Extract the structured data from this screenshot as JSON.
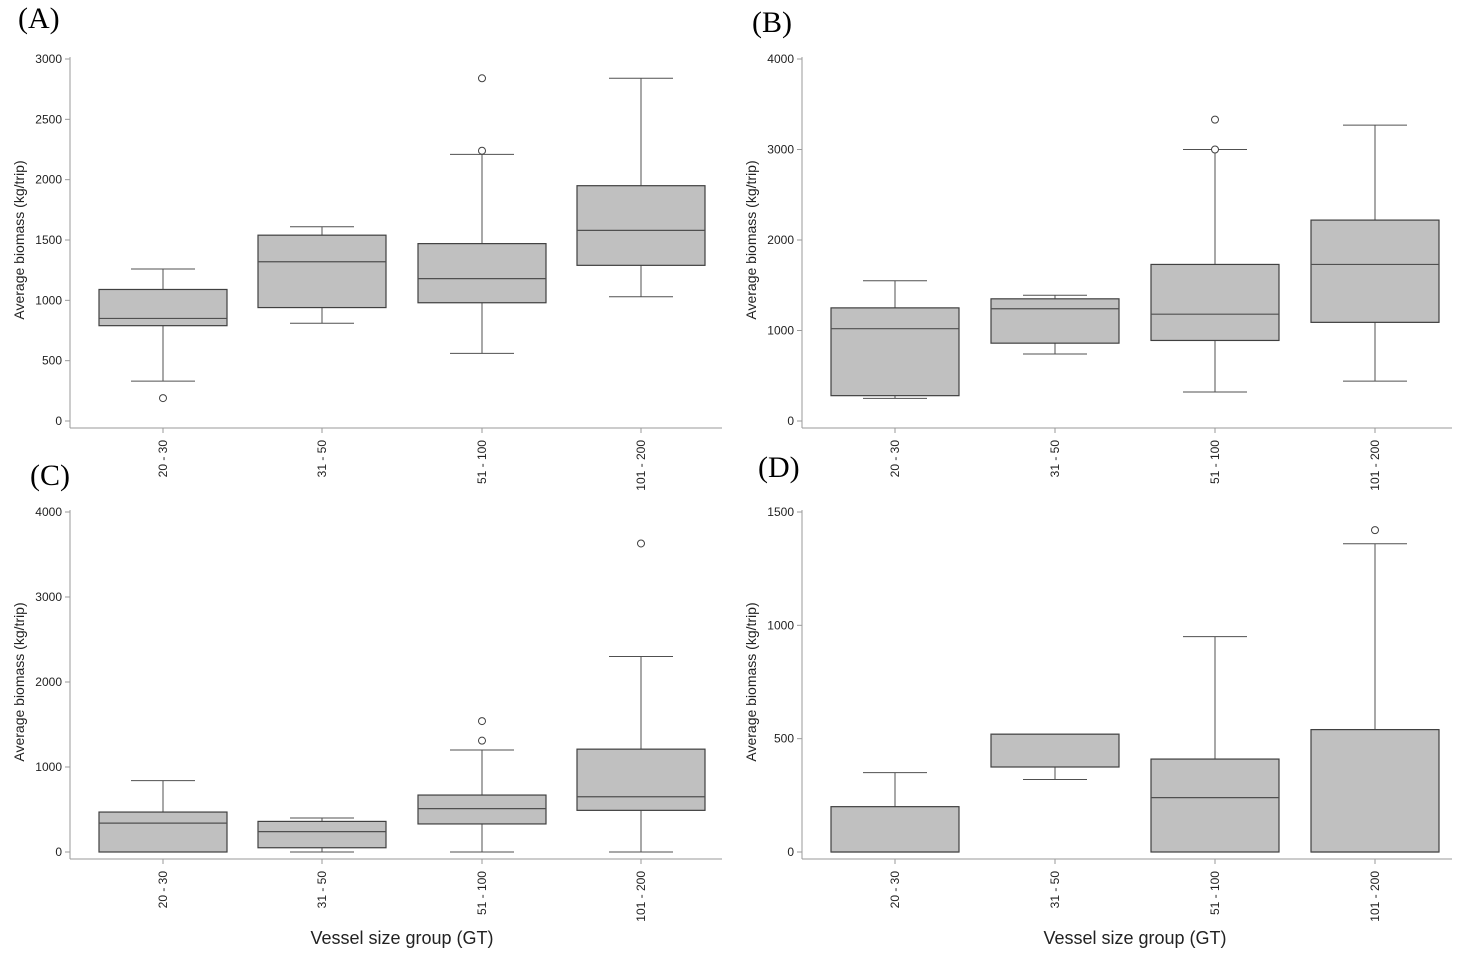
{
  "figure": {
    "x_axis_title": "Vessel size group (GT)"
  },
  "chart_data": [
    {
      "panel": "(A)",
      "type": "box",
      "ylabel": "Average biomass (kg/trip)",
      "xlabel": "",
      "ylim": [
        0,
        3000
      ],
      "yticks": [
        "0",
        "500",
        "1000",
        "1500",
        "2000",
        "2500",
        "3000"
      ],
      "categories": [
        "20 - 30",
        "31 - 50",
        "51 - 100",
        "101 - 200"
      ],
      "boxes": [
        {
          "min": 330,
          "q1": 790,
          "median": 850,
          "q3": 1090,
          "max": 1260,
          "outliers": [
            190
          ]
        },
        {
          "min": 810,
          "q1": 940,
          "median": 1320,
          "q3": 1540,
          "max": 1610,
          "outliers": []
        },
        {
          "min": 560,
          "q1": 980,
          "median": 1180,
          "q3": 1470,
          "max": 2210,
          "outliers": [
            2240,
            2840
          ]
        },
        {
          "min": 1030,
          "q1": 1290,
          "median": 1580,
          "q3": 1950,
          "max": 2840,
          "outliers": []
        }
      ]
    },
    {
      "panel": "(B)",
      "type": "box",
      "ylabel": "Average biomass (kg/trip)",
      "xlabel": "",
      "ylim": [
        0,
        4000
      ],
      "yticks": [
        "0",
        "1000",
        "2000",
        "3000",
        "4000"
      ],
      "categories": [
        "20 - 30",
        "31 - 50",
        "51 - 100",
        "101 - 200"
      ],
      "boxes": [
        {
          "min": 250,
          "q1": 280,
          "median": 1020,
          "q3": 1250,
          "max": 1550,
          "outliers": []
        },
        {
          "min": 740,
          "q1": 860,
          "median": 1240,
          "q3": 1350,
          "max": 1390,
          "outliers": []
        },
        {
          "min": 320,
          "q1": 890,
          "median": 1180,
          "q3": 1730,
          "max": 3000,
          "outliers": [
            3000,
            3330
          ]
        },
        {
          "min": 440,
          "q1": 1090,
          "median": 1730,
          "q3": 2220,
          "max": 3270,
          "outliers": []
        }
      ]
    },
    {
      "panel": "(C)",
      "type": "box",
      "ylabel": "Average biomass (kg/trip)",
      "xlabel": "Vessel size group (GT)",
      "ylim": [
        0,
        4000
      ],
      "yticks": [
        "0",
        "1000",
        "2000",
        "3000",
        "4000"
      ],
      "categories": [
        "20 - 30",
        "31 - 50",
        "51 - 100",
        "101 - 200"
      ],
      "boxes": [
        {
          "min": 0,
          "q1": 0,
          "median": 340,
          "q3": 470,
          "max": 840,
          "outliers": []
        },
        {
          "min": 0,
          "q1": 50,
          "median": 240,
          "q3": 360,
          "max": 400,
          "outliers": []
        },
        {
          "min": 0,
          "q1": 330,
          "median": 510,
          "q3": 670,
          "max": 1200,
          "outliers": [
            1310,
            1540
          ]
        },
        {
          "min": 0,
          "q1": 490,
          "median": 650,
          "q3": 1210,
          "max": 2300,
          "outliers": [
            3630
          ]
        }
      ]
    },
    {
      "panel": "(D)",
      "type": "box",
      "ylabel": "Average biomass (kg/trip)",
      "xlabel": "Vessel size group (GT)",
      "ylim": [
        0,
        1500
      ],
      "yticks": [
        "0",
        "500",
        "1000",
        "1500"
      ],
      "categories": [
        "20 - 30",
        "31 - 50",
        "51 - 100",
        "101 - 200"
      ],
      "boxes": [
        {
          "min": 0,
          "q1": 0,
          "median": 0,
          "q3": 200,
          "max": 350,
          "outliers": []
        },
        {
          "min": 320,
          "q1": 375,
          "median": 520,
          "q3": 520,
          "max": 520,
          "outliers": []
        },
        {
          "min": 0,
          "q1": 0,
          "median": 240,
          "q3": 410,
          "max": 950,
          "outliers": []
        },
        {
          "min": 0,
          "q1": 0,
          "median": 0,
          "q3": 540,
          "max": 1360,
          "outliers": [
            1420
          ]
        }
      ]
    }
  ]
}
